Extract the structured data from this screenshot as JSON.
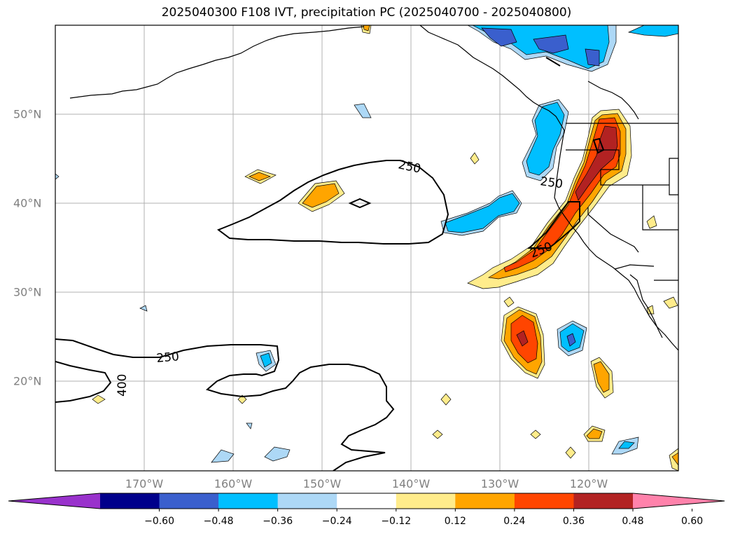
{
  "title": "2025040300 F108 IVT, precipitation PC (2025040700 - 2025040800)",
  "longitude_labels": [
    "170°W",
    "160°W",
    "150°W",
    "140°W",
    "130°W",
    "120°W"
  ],
  "latitude_labels": [
    "50°N",
    "40°N",
    "30°N",
    "20°N"
  ],
  "contour_labels": [
    "250",
    "250",
    "250",
    "250",
    "400"
  ],
  "colorbar": {
    "tick_labels": [
      "−0.60",
      "−0.48",
      "−0.36",
      "−0.24",
      "−0.12",
      "0.12",
      "0.24",
      "0.36",
      "0.48",
      "0.60"
    ],
    "colors": [
      "#9932cc",
      "#00008b",
      "#3a5fcd",
      "#00bfff",
      "#add8f6",
      "#ffffff",
      "#ffec8b",
      "#ffa500",
      "#ff4500",
      "#b22222",
      "#ff82ab"
    ]
  },
  "map": {
    "region": "North Pacific and western North America",
    "grid": true,
    "land_fill": "white"
  }
}
